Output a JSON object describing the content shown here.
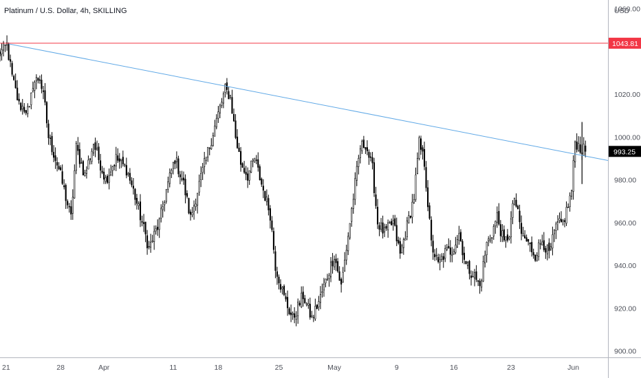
{
  "header": {
    "symbol_title": "Platinum / U.S. Dollar, 4h, SKILLING"
  },
  "price_scale": {
    "currency": "USD"
  },
  "chart_data": {
    "type": "candlestick",
    "title": "Platinum / U.S. Dollar, 4h, SKILLING",
    "timeframe": "4h",
    "y_ticks": [
      900,
      920,
      940,
      960,
      980,
      1000,
      1020,
      1040,
      1060
    ],
    "y_tick_labels": [
      "900.00",
      "920.00",
      "940.00",
      "960.00",
      "980.00",
      "1000.00",
      "1020.00",
      "",
      "1060.00"
    ],
    "ylim": [
      897,
      1064
    ],
    "x_tick_labels": [
      {
        "label": "21",
        "bar": 0
      },
      {
        "label": "28",
        "bar": 36
      },
      {
        "label": "Apr",
        "bar": 61
      },
      {
        "label": "11",
        "bar": 101
      },
      {
        "label": "18",
        "bar": 127
      },
      {
        "label": "25",
        "bar": 162
      },
      {
        "label": "May",
        "bar": 194
      },
      {
        "label": "9",
        "bar": 230
      },
      {
        "label": "16",
        "bar": 263
      },
      {
        "label": "23",
        "bar": 296
      },
      {
        "label": "Jun",
        "bar": 332
      }
    ],
    "bar_count": 340,
    "xlim_bars": [
      1,
      352
    ],
    "anchors": [
      [
        0,
        1038
      ],
      [
        5,
        1043
      ],
      [
        8,
        1028
      ],
      [
        12,
        1015
      ],
      [
        18,
        1012
      ],
      [
        20,
        1025
      ],
      [
        24,
        1028
      ],
      [
        27,
        1014
      ],
      [
        29,
        1000
      ],
      [
        35,
        985
      ],
      [
        42,
        962
      ],
      [
        45,
        995
      ],
      [
        50,
        982
      ],
      [
        55,
        997
      ],
      [
        62,
        980
      ],
      [
        68,
        990
      ],
      [
        74,
        985
      ],
      [
        78,
        975
      ],
      [
        83,
        960
      ],
      [
        87,
        948
      ],
      [
        93,
        960
      ],
      [
        97,
        975
      ],
      [
        102,
        990
      ],
      [
        107,
        978
      ],
      [
        111,
        962
      ],
      [
        116,
        978
      ],
      [
        120,
        990
      ],
      [
        125,
        1005
      ],
      [
        131,
        1022
      ],
      [
        134,
        1019
      ],
      [
        137,
        1000
      ],
      [
        140,
        988
      ],
      [
        144,
        982
      ],
      [
        148,
        990
      ],
      [
        152,
        978
      ],
      [
        157,
        964
      ],
      [
        160,
        940
      ],
      [
        165,
        925
      ],
      [
        170,
        915
      ],
      [
        176,
        926
      ],
      [
        181,
        915
      ],
      [
        186,
        925
      ],
      [
        190,
        935
      ],
      [
        194,
        945
      ],
      [
        198,
        930
      ],
      [
        203,
        960
      ],
      [
        206,
        978
      ],
      [
        209,
        995
      ],
      [
        212,
        997
      ],
      [
        216,
        985
      ],
      [
        219,
        960
      ],
      [
        223,
        955
      ],
      [
        228,
        960
      ],
      [
        232,
        945
      ],
      [
        235,
        955
      ],
      [
        240,
        972
      ],
      [
        243,
        997
      ],
      [
        246,
        988
      ],
      [
        250,
        950
      ],
      [
        254,
        940
      ],
      [
        258,
        946
      ],
      [
        262,
        947
      ],
      [
        266,
        955
      ],
      [
        270,
        940
      ],
      [
        275,
        935
      ],
      [
        278,
        930
      ],
      [
        282,
        950
      ],
      [
        285,
        955
      ],
      [
        288,
        963
      ],
      [
        292,
        950
      ],
      [
        295,
        955
      ],
      [
        298,
        972
      ],
      [
        302,
        955
      ],
      [
        306,
        950
      ],
      [
        310,
        945
      ],
      [
        314,
        952
      ],
      [
        318,
        945
      ],
      [
        322,
        958
      ],
      [
        326,
        960
      ],
      [
        329,
        968
      ],
      [
        331,
        975
      ],
      [
        333,
        998
      ],
      [
        336,
        995
      ],
      [
        339,
        993
      ]
    ],
    "last_price": 993.25,
    "last_price_label": "993.25",
    "resistance": {
      "value": 1043.81,
      "label": "1043.81",
      "color": "#f23645"
    },
    "trendline": {
      "from": {
        "bar": 6,
        "price": 1043.5
      },
      "to": {
        "bar": 352,
        "price": 989
      },
      "color": "#5fa8e6"
    },
    "colors": {
      "candle": "#000000",
      "axis_text": "#4c4f58",
      "last_price_bg": "#000000"
    },
    "grid": false
  }
}
